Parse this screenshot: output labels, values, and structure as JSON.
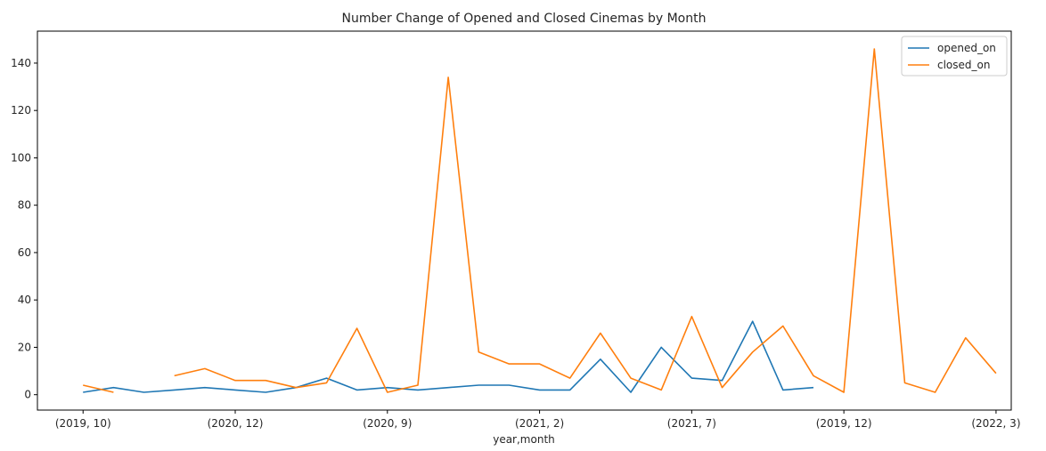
{
  "chart_data": {
    "type": "line",
    "title": "Number Change of Opened and Closed Cinemas by Month",
    "xlabel": "year,month",
    "ylabel": "",
    "ylim": [
      -6.5,
      153.5
    ],
    "yticks": [
      0,
      20,
      40,
      60,
      80,
      100,
      120,
      140
    ],
    "xlim": [
      -1.5,
      30.5
    ],
    "xticks": [
      {
        "i": 0,
        "label": "(2019, 10)"
      },
      {
        "i": 5,
        "label": "(2020, 12)"
      },
      {
        "i": 10,
        "label": "(2020, 9)"
      },
      {
        "i": 15,
        "label": "(2021, 2)"
      },
      {
        "i": 20,
        "label": "(2021, 7)"
      },
      {
        "i": 25,
        "label": "(2019, 12)"
      },
      {
        "i": 30,
        "label": "(2022, 3)"
      }
    ],
    "x": [
      0,
      1,
      2,
      3,
      4,
      5,
      6,
      7,
      8,
      9,
      10,
      11,
      12,
      13,
      14,
      15,
      16,
      17,
      18,
      19,
      20,
      21,
      22,
      23,
      24,
      25,
      26,
      27,
      28,
      29,
      30
    ],
    "series": [
      {
        "name": "opened_on",
        "color": "#1f77b4",
        "values": [
          1,
          3,
          1,
          2,
          3,
          2,
          1,
          3,
          7,
          2,
          3,
          2,
          3,
          4,
          4,
          2,
          2,
          15,
          1,
          20,
          7,
          6,
          31,
          2,
          3,
          null,
          null,
          null,
          null,
          null,
          null
        ]
      },
      {
        "name": "closed_on",
        "color": "#ff7f0e",
        "values": [
          4,
          1,
          null,
          8,
          11,
          6,
          6,
          3,
          5,
          28,
          1,
          4,
          134,
          18,
          13,
          13,
          7,
          26,
          7,
          2,
          33,
          3,
          18,
          29,
          8,
          1,
          146,
          5,
          1,
          24,
          9
        ]
      }
    ],
    "legend": "top-right",
    "grid": false
  }
}
